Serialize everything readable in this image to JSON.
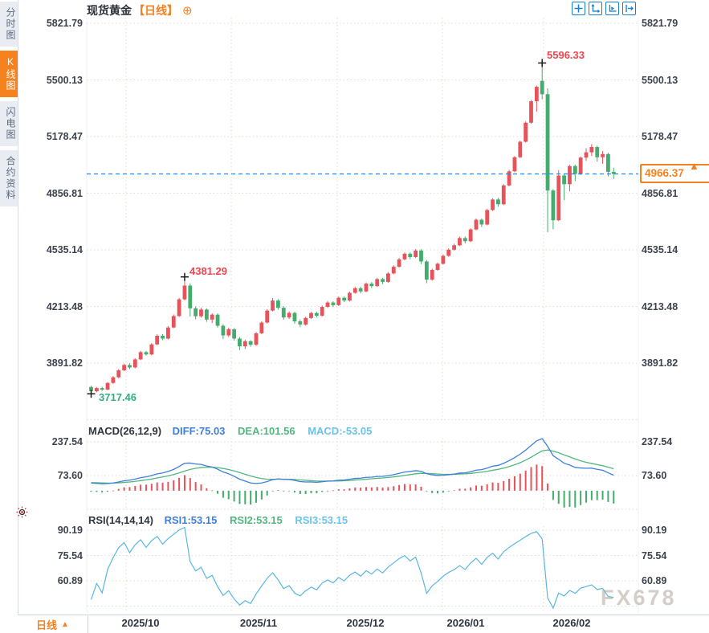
{
  "header": {
    "title": "现货黄金",
    "period": "【日线】",
    "add_icon": "⊕"
  },
  "toolbar": {
    "icons": [
      "crosshair",
      "x-axis-scale",
      "playback",
      "jump-to-latest"
    ]
  },
  "sidebar": {
    "tabs": [
      {
        "label": "分时图",
        "active": false
      },
      {
        "label": "K线图",
        "active": true
      },
      {
        "label": "闪电图",
        "active": false
      },
      {
        "label": "合约资料",
        "active": false
      }
    ]
  },
  "main_chart": {
    "y_axis_labels": [
      "5821.79",
      "5500.13",
      "5178.47",
      "4856.81",
      "4535.14",
      "4213.48",
      "3891.82"
    ],
    "annotations": {
      "high": "5596.33",
      "swing_high": "4381.29",
      "low": "3717.46"
    },
    "current_price": "4966.37",
    "price_arrow": "▲"
  },
  "macd": {
    "title": "MACD(26,12,9)",
    "diff_label": "DIFF:75.03",
    "dea_label": "DEA:101.56",
    "macd_label": "MACD:-53.05",
    "axis_labels": [
      "237.54",
      "73.60"
    ]
  },
  "rsi": {
    "title": "RSI(14,14,14)",
    "rsi1_label": "RSI1:53.15",
    "rsi2_label": "RSI2:53.15",
    "rsi3_label": "RSI3:53.15",
    "axis_labels": [
      "90.19",
      "75.54",
      "60.89"
    ]
  },
  "bottom_bar": {
    "period_label": "日线",
    "period_arrow": "▲",
    "x_labels": [
      "2025/10",
      "2025/11",
      "2025/12",
      "2026/01",
      "2026/02"
    ]
  },
  "watermark": "FX678",
  "colors": {
    "up": "#e8535b",
    "down": "#44ad6d",
    "accent": "#f5821f",
    "price_line": "#1f8cf5",
    "diff_line": "#3f7fd9",
    "dea_line": "#52b77e",
    "macd_value": "#6cc3e8",
    "rsi_line": "#5ab6e0",
    "grid": "#e3ddd1",
    "annotation_red": "#ef4550",
    "annotation_green": "#35ad80"
  },
  "chart_data": {
    "type": "candlestick",
    "symbol": "现货黄金",
    "period": "日线",
    "x_labels": [
      "2025/10",
      "2025/11",
      "2025/12",
      "2026/01",
      "2026/02"
    ],
    "y_axis": [
      5821.79,
      5500.13,
      5178.47,
      4856.81,
      4535.14,
      4213.48,
      3891.82
    ],
    "current_price": 4966.37,
    "annotations": [
      {
        "index": 0,
        "price": 3717.46,
        "type": "low"
      },
      {
        "index": 17,
        "price": 4381.29,
        "type": "swing-high"
      },
      {
        "index": 82,
        "price": 5596.33,
        "type": "high"
      }
    ],
    "macd_axis": [
      237.54,
      73.6
    ],
    "macd_last": {
      "diff": 75.03,
      "dea": 101.56,
      "macd": -53.05
    },
    "rsi_axis": [
      90.19,
      75.54,
      60.89
    ],
    "rsi_last": {
      "rsi1": 53.15,
      "rsi2": 53.15,
      "rsi3": 53.15
    },
    "candles": [
      [
        3756,
        3764,
        3717.46,
        3732
      ],
      [
        3732,
        3756,
        3726,
        3750
      ],
      [
        3750,
        3757,
        3733,
        3741
      ],
      [
        3741,
        3784,
        3738,
        3779
      ],
      [
        3779,
        3818,
        3774,
        3811
      ],
      [
        3811,
        3858,
        3806,
        3851
      ],
      [
        3851,
        3888,
        3846,
        3881
      ],
      [
        3881,
        3891,
        3858,
        3867
      ],
      [
        3867,
        3919,
        3862,
        3913
      ],
      [
        3913,
        3962,
        3908,
        3954
      ],
      [
        3954,
        3961,
        3934,
        3941
      ],
      [
        3941,
        4005,
        3936,
        3998
      ],
      [
        3998,
        4055,
        3993,
        4047
      ],
      [
        4047,
        4056,
        4022,
        4031
      ],
      [
        4031,
        4102,
        4026,
        4094
      ],
      [
        4094,
        4168,
        4090,
        4159
      ],
      [
        4159,
        4262,
        4154,
        4254
      ],
      [
        4254,
        4381.29,
        4248,
        4332
      ],
      [
        4332,
        4345,
        4156,
        4203
      ],
      [
        4203,
        4214,
        4140,
        4158
      ],
      [
        4158,
        4205,
        4150,
        4196
      ],
      [
        4196,
        4203,
        4126,
        4139
      ],
      [
        4139,
        4175,
        4120,
        4167
      ],
      [
        4167,
        4174,
        4094,
        4104
      ],
      [
        4104,
        4112,
        4028,
        4049
      ],
      [
        4049,
        4092,
        4040,
        4084
      ],
      [
        4084,
        4090,
        4020,
        4031
      ],
      [
        4031,
        4040,
        3966,
        3987
      ],
      [
        3987,
        4024,
        3972,
        4016
      ],
      [
        4016,
        4022,
        3985,
        3996
      ],
      [
        3996,
        4068,
        3990,
        4061
      ],
      [
        4061,
        4130,
        4056,
        4122
      ],
      [
        4122,
        4198,
        4117,
        4190
      ],
      [
        4190,
        4262,
        4185,
        4247
      ],
      [
        4247,
        4255,
        4195,
        4206
      ],
      [
        4206,
        4214,
        4138,
        4151
      ],
      [
        4151,
        4185,
        4142,
        4177
      ],
      [
        4177,
        4183,
        4116,
        4129
      ],
      [
        4129,
        4140,
        4096,
        4111
      ],
      [
        4111,
        4155,
        4104,
        4148
      ],
      [
        4148,
        4183,
        4142,
        4176
      ],
      [
        4176,
        4184,
        4150,
        4161
      ],
      [
        4161,
        4218,
        4155,
        4211
      ],
      [
        4211,
        4244,
        4205,
        4236
      ],
      [
        4236,
        4243,
        4210,
        4221
      ],
      [
        4221,
        4270,
        4216,
        4263
      ],
      [
        4263,
        4271,
        4238,
        4247
      ],
      [
        4247,
        4298,
        4242,
        4291
      ],
      [
        4291,
        4324,
        4286,
        4317
      ],
      [
        4317,
        4326,
        4288,
        4299
      ],
      [
        4299,
        4350,
        4294,
        4343
      ],
      [
        4343,
        4352,
        4318,
        4329
      ],
      [
        4329,
        4376,
        4324,
        4369
      ],
      [
        4369,
        4377,
        4340,
        4353
      ],
      [
        4353,
        4409,
        4348,
        4401
      ],
      [
        4401,
        4447,
        4396,
        4439
      ],
      [
        4439,
        4489,
        4434,
        4481
      ],
      [
        4481,
        4520,
        4476,
        4513
      ],
      [
        4513,
        4521,
        4482,
        4494
      ],
      [
        4494,
        4540,
        4489,
        4531
      ],
      [
        4531,
        4539,
        4455,
        4469
      ],
      [
        4469,
        4478,
        4346,
        4366
      ],
      [
        4366,
        4428,
        4360,
        4421
      ],
      [
        4421,
        4463,
        4416,
        4456
      ],
      [
        4456,
        4508,
        4451,
        4501
      ],
      [
        4501,
        4543,
        4496,
        4536
      ],
      [
        4536,
        4570,
        4530,
        4561
      ],
      [
        4561,
        4610,
        4556,
        4602
      ],
      [
        4602,
        4611,
        4572,
        4584
      ],
      [
        4584,
        4658,
        4579,
        4651
      ],
      [
        4651,
        4713,
        4646,
        4706
      ],
      [
        4706,
        4714,
        4664,
        4679
      ],
      [
        4679,
        4768,
        4674,
        4761
      ],
      [
        4761,
        4828,
        4756,
        4821
      ],
      [
        4821,
        4830,
        4780,
        4794
      ],
      [
        4794,
        4908,
        4789,
        4901
      ],
      [
        4901,
        4989,
        4896,
        4981
      ],
      [
        4981,
        5068,
        4976,
        5061
      ],
      [
        5061,
        5156,
        5056,
        5149
      ],
      [
        5149,
        5264,
        5144,
        5257
      ],
      [
        5257,
        5386,
        5252,
        5379
      ],
      [
        5379,
        5468,
        5320,
        5461
      ],
      [
        5495,
        5596.33,
        5390,
        5419
      ],
      [
        5419,
        5452,
        4635,
        4872
      ],
      [
        4872,
        4880,
        4652,
        4703
      ],
      [
        4703,
        4988,
        4698,
        4957
      ],
      [
        4957,
        4964,
        4818,
        4908
      ],
      [
        4908,
        5018,
        4868,
        5011
      ],
      [
        5011,
        5019,
        4926,
        4966
      ],
      [
        4966,
        5066,
        4960,
        5059
      ],
      [
        5059,
        5112,
        5040,
        5089
      ],
      [
        5089,
        5136,
        5068,
        5119
      ],
      [
        5119,
        5127,
        5036,
        5061
      ],
      [
        5061,
        5096,
        5024,
        5079
      ],
      [
        5079,
        5087,
        4952,
        4978
      ],
      [
        4978,
        5002,
        4938,
        4966.37
      ]
    ]
  }
}
